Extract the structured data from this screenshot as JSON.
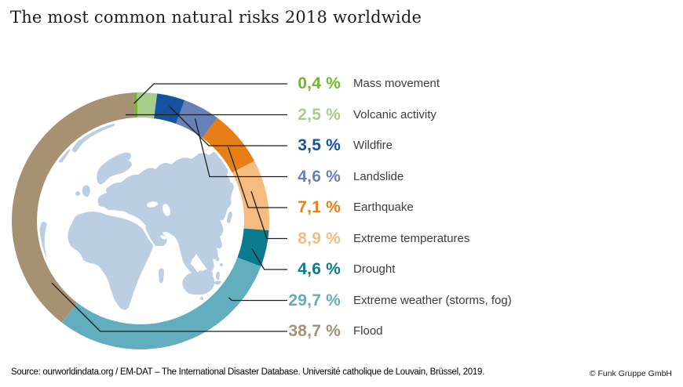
{
  "title": "The most common natural risks 2018 worldwide",
  "chart_data": {
    "type": "pie",
    "subtype": "donut",
    "title": "The most common natural risks 2018 worldwide",
    "unit": "%",
    "decimal_separator": ",",
    "direction": "clockwise",
    "start_angle_deg": -3,
    "center_illustration": "world-map",
    "map_land_color": "#bccfe2",
    "leader_line_color": "#1d1d1b",
    "label_text_color": "#3d3d3d",
    "segments": [
      {
        "label": "Mass movement",
        "value": 0.4,
        "value_label": "0,4 %",
        "color": "#72b52e"
      },
      {
        "label": "Volcanic activity",
        "value": 2.5,
        "value_label": "2,5 %",
        "color": "#a9cd8a"
      },
      {
        "label": "Wildfire",
        "value": 3.5,
        "value_label": "3,5 %",
        "color": "#15529f"
      },
      {
        "label": "Landslide",
        "value": 4.6,
        "value_label": "4,6 %",
        "color": "#6680b9"
      },
      {
        "label": "Earthquake",
        "value": 7.1,
        "value_label": "7,1 %",
        "color": "#e87e16"
      },
      {
        "label": "Extreme temperatures",
        "value": 8.9,
        "value_label": "8,9 %",
        "color": "#f6bb80"
      },
      {
        "label": "Drought",
        "value": 4.6,
        "value_label": "4,6 %",
        "color": "#0b7a8f"
      },
      {
        "label": "Extreme weather (storms, fog)",
        "value": 29.7,
        "value_label": "29,7 %",
        "color": "#62aebe"
      },
      {
        "label": "Flood",
        "value": 38.7,
        "value_label": "38,7 %",
        "color": "#a69173"
      }
    ]
  },
  "footer": {
    "source": "Source: ourworldindata.org / EM-DAT – The International Disaster Database. Université catholique de Louvain, Brüssel, 2019.",
    "copyright": "© Funk Gruppe GmbH"
  }
}
